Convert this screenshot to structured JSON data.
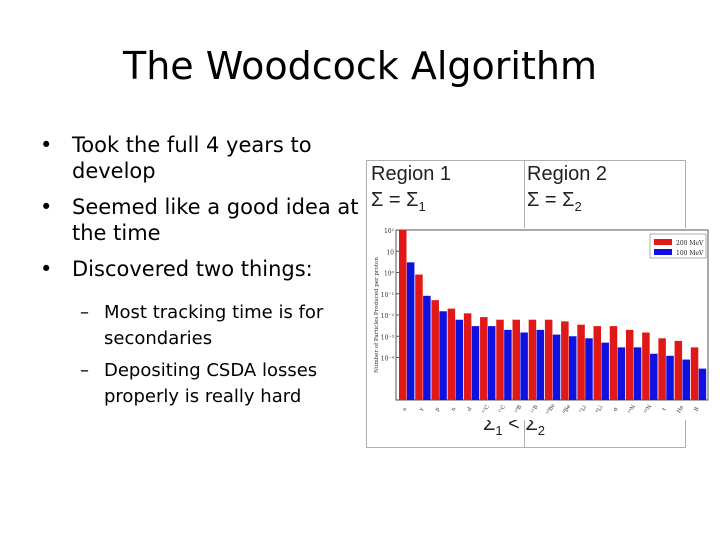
{
  "slide": {
    "title": "The Woodcock Algorithm",
    "bullets": [
      "Took the full 4 years to develop",
      "Seemed like a good idea at the time",
      "Discovered two things:"
    ],
    "subbullets": [
      "Most tracking time is for secondaries",
      "Depositing CSDA losses properly is really hard"
    ],
    "bullet_symbol": "•",
    "dash_symbol": "–"
  },
  "regions": {
    "region1_label": "Region 1",
    "region2_label": "Region 2",
    "region1_sigma": "Σ = Σ",
    "region1_sigma_sub": "1",
    "region2_sigma": "Σ = Σ",
    "region2_sigma_sub": "2",
    "bottom_eq_left": "Σ",
    "bottom_eq_left_sub": "1",
    "bottom_eq_op": " < ",
    "bottom_eq_right": "Σ",
    "bottom_eq_right_sub": "2"
  },
  "chart_data": {
    "type": "bar",
    "ylabel": "Number of Particles Produced per proton",
    "yscale": "log",
    "ylim_exp": [
      -6,
      2
    ],
    "ytick_labels": [
      "10²",
      "10",
      "10⁰",
      "10⁻¹",
      "10⁻²",
      "10⁻³",
      "10⁻⁴"
    ],
    "categories": [
      "e",
      "γ",
      "p",
      "n",
      "d",
      "¹²C",
      "¹¹C",
      "¹⁰B",
      "¹¹B",
      "¹⁰Be",
      "⁹Be",
      "⁷Li",
      "⁶Li",
      "α",
      "¹⁴N",
      "¹³N",
      "t",
      "He",
      "B"
    ],
    "series": [
      {
        "name": "200 MeV",
        "color": "#e01818",
        "values": [
          100,
          0.8,
          0.05,
          0.02,
          0.012,
          0.008,
          0.006,
          0.006,
          0.006,
          0.006,
          0.005,
          0.0035,
          0.003,
          0.003,
          0.002,
          0.0015,
          0.0008,
          0.0006,
          0.0003
        ]
      },
      {
        "name": "100 MeV",
        "color": "#1010e0",
        "values": [
          3,
          0.08,
          0.015,
          0.006,
          0.003,
          0.003,
          0.002,
          0.0015,
          0.002,
          0.0012,
          0.001,
          0.0008,
          0.0005,
          0.0003,
          0.0003,
          0.00015,
          0.00012,
          8e-05,
          3e-05
        ]
      }
    ],
    "legend": [
      "200 MeV",
      "100 MeV"
    ]
  }
}
